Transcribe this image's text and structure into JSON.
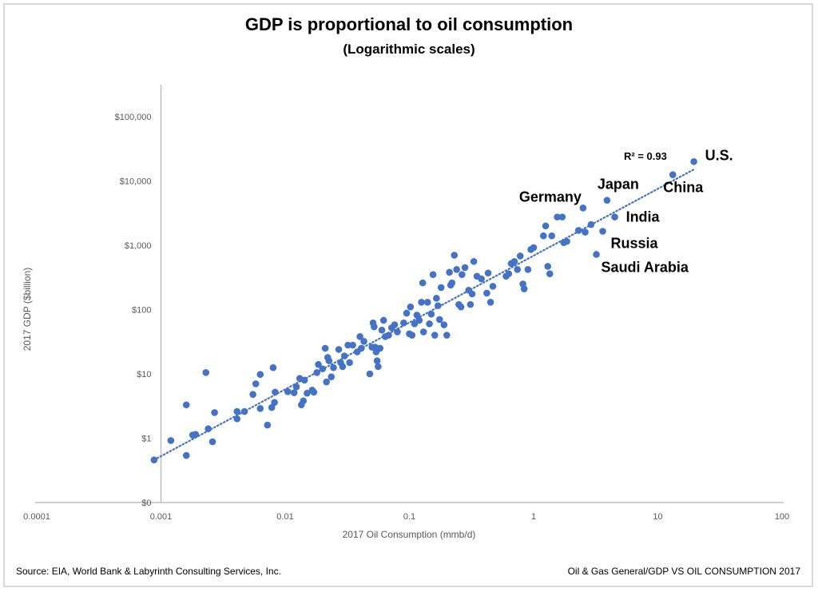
{
  "chart_data": {
    "type": "scatter",
    "title": "GDP is proportional to oil consumption",
    "subtitle": "(Logarithmic scales)",
    "xlabel": "2017 Oil Consumption (mmb/d)",
    "ylabel": "2017 GDP ($billion)",
    "xscale": "log",
    "yscale": "log",
    "xlim": [
      0.0001,
      100
    ],
    "ylim": [
      0.1,
      100000
    ],
    "x_ticks": [
      0.0001,
      0.001,
      0.01,
      0.1,
      1,
      10,
      100
    ],
    "x_tick_labels": [
      "0.0001",
      "0.001",
      "0.01",
      "0.1",
      "1",
      "10",
      "100"
    ],
    "y_ticks": [
      0.1,
      1,
      10,
      100,
      1000,
      10000,
      100000
    ],
    "y_tick_labels": [
      "$0",
      "$1",
      "$10",
      "$100",
      "$1,000",
      "$10,000",
      "$100,000"
    ],
    "grid": false,
    "marker_color": "#4472c4",
    "trendline": {
      "type": "power",
      "style": "dotted",
      "color": "#4472c4",
      "r_squared_label": "R² = 0.93",
      "start": [
        0.00088,
        0.46
      ],
      "end": [
        20,
        15500
      ]
    },
    "annotations": [
      {
        "label": "U.S.",
        "x": 19.5,
        "y": 20000
      },
      {
        "label": "China",
        "x": 13.2,
        "y": 12500
      },
      {
        "label": "Japan",
        "x": 3.9,
        "y": 5000
      },
      {
        "label": "Germany",
        "x": 2.5,
        "y": 3800
      },
      {
        "label": "India",
        "x": 4.5,
        "y": 2750
      },
      {
        "label": "Russia",
        "x": 3.6,
        "y": 1650
      },
      {
        "label": "Saudi Arabia",
        "x": 3.2,
        "y": 720
      }
    ],
    "points": [
      [
        0.00088,
        0.46
      ],
      [
        0.0012,
        0.92
      ],
      [
        0.0016,
        0.54
      ],
      [
        0.0016,
        3.3
      ],
      [
        0.0018,
        1.12
      ],
      [
        0.0019,
        1.15
      ],
      [
        0.0023,
        10.5
      ],
      [
        0.0024,
        1.4
      ],
      [
        0.0026,
        0.88
      ],
      [
        0.0027,
        2.5
      ],
      [
        0.0041,
        2.6
      ],
      [
        0.0041,
        2.0
      ],
      [
        0.0047,
        2.6
      ],
      [
        0.0055,
        4.8
      ],
      [
        0.0058,
        7.0
      ],
      [
        0.0063,
        9.8
      ],
      [
        0.0063,
        2.9
      ],
      [
        0.0072,
        1.6
      ],
      [
        0.0078,
        3.0
      ],
      [
        0.008,
        12.5
      ],
      [
        0.0082,
        3.6
      ],
      [
        0.0083,
        5.2
      ],
      [
        0.0105,
        5.3
      ],
      [
        0.0118,
        5.1
      ],
      [
        0.0123,
        6.3
      ],
      [
        0.0131,
        8.5
      ],
      [
        0.0135,
        3.3
      ],
      [
        0.014,
        3.8
      ],
      [
        0.0143,
        8.0
      ],
      [
        0.015,
        5.0
      ],
      [
        0.0165,
        5.6
      ],
      [
        0.017,
        5.2
      ],
      [
        0.018,
        10.5
      ],
      [
        0.0185,
        14.0
      ],
      [
        0.02,
        12.0
      ],
      [
        0.021,
        25.0
      ],
      [
        0.0215,
        7.5
      ],
      [
        0.022,
        18.0
      ],
      [
        0.0225,
        16.0
      ],
      [
        0.0235,
        9.0
      ],
      [
        0.0245,
        12.5
      ],
      [
        0.027,
        24.0
      ],
      [
        0.028,
        15.0
      ],
      [
        0.029,
        13.0
      ],
      [
        0.03,
        19.0
      ],
      [
        0.032,
        28.0
      ],
      [
        0.033,
        15.0
      ],
      [
        0.035,
        28.0
      ],
      [
        0.038,
        22.0
      ],
      [
        0.04,
        38.0
      ],
      [
        0.041,
        25.0
      ],
      [
        0.043,
        32.0
      ],
      [
        0.048,
        10.0
      ],
      [
        0.05,
        26.0
      ],
      [
        0.051,
        62.0
      ],
      [
        0.052,
        54.0
      ],
      [
        0.053,
        26.0
      ],
      [
        0.054,
        22.0
      ],
      [
        0.055,
        16.0
      ],
      [
        0.056,
        13.0
      ],
      [
        0.058,
        25.0
      ],
      [
        0.06,
        48.0
      ],
      [
        0.062,
        68.0
      ],
      [
        0.064,
        38.0
      ],
      [
        0.068,
        40.0
      ],
      [
        0.072,
        52.0
      ],
      [
        0.076,
        58.0
      ],
      [
        0.08,
        45.0
      ],
      [
        0.09,
        62.0
      ],
      [
        0.095,
        88.0
      ],
      [
        0.1,
        42.0
      ],
      [
        0.102,
        110.0
      ],
      [
        0.105,
        40.0
      ],
      [
        0.11,
        60.0
      ],
      [
        0.115,
        82.0
      ],
      [
        0.12,
        68.0
      ],
      [
        0.125,
        130.0
      ],
      [
        0.128,
        260.0
      ],
      [
        0.13,
        45.0
      ],
      [
        0.14,
        130.0
      ],
      [
        0.145,
        60.0
      ],
      [
        0.15,
        85.0
      ],
      [
        0.155,
        350.0
      ],
      [
        0.16,
        40.0
      ],
      [
        0.165,
        150.0
      ],
      [
        0.17,
        115.0
      ],
      [
        0.175,
        70.0
      ],
      [
        0.18,
        220.0
      ],
      [
        0.19,
        58.0
      ],
      [
        0.2,
        40.0
      ],
      [
        0.21,
        380.0
      ],
      [
        0.215,
        240.0
      ],
      [
        0.22,
        260.0
      ],
      [
        0.23,
        700.0
      ],
      [
        0.24,
        420.0
      ],
      [
        0.25,
        120.0
      ],
      [
        0.26,
        110.0
      ],
      [
        0.265,
        350.0
      ],
      [
        0.28,
        450.0
      ],
      [
        0.3,
        200.0
      ],
      [
        0.31,
        120.0
      ],
      [
        0.32,
        175.0
      ],
      [
        0.33,
        560.0
      ],
      [
        0.35,
        330.0
      ],
      [
        0.38,
        300.0
      ],
      [
        0.42,
        180.0
      ],
      [
        0.43,
        370.0
      ],
      [
        0.45,
        130.0
      ],
      [
        0.47,
        230.0
      ],
      [
        0.6,
        330.0
      ],
      [
        0.63,
        360.0
      ],
      [
        0.66,
        520.0
      ],
      [
        0.7,
        560.0
      ],
      [
        0.74,
        420.0
      ],
      [
        0.78,
        680.0
      ],
      [
        0.82,
        250.0
      ],
      [
        0.84,
        210.0
      ],
      [
        0.9,
        420.0
      ],
      [
        0.95,
        860.0
      ],
      [
        1.0,
        920.0
      ],
      [
        1.2,
        1400.0
      ],
      [
        1.25,
        2000.0
      ],
      [
        1.3,
        470.0
      ],
      [
        1.35,
        360.0
      ],
      [
        1.4,
        1400.0
      ],
      [
        1.55,
        2750.0
      ],
      [
        1.7,
        2750.0
      ],
      [
        1.75,
        1100.0
      ],
      [
        1.85,
        1150.0
      ],
      [
        2.3,
        1700.0
      ],
      [
        2.5,
        3800.0
      ],
      [
        2.6,
        1600.0
      ],
      [
        2.9,
        2100.0
      ],
      [
        3.2,
        720.0
      ],
      [
        3.6,
        1650.0
      ],
      [
        3.9,
        5000.0
      ],
      [
        4.5,
        2750.0
      ],
      [
        13.2,
        12500.0
      ],
      [
        19.5,
        20000.0
      ]
    ]
  },
  "footer": {
    "source": "Source: EIA, World Bank & Labyrinth Consulting Services, Inc.",
    "path": "Oil & Gas General/GDP VS OIL CONSUMPTION 2017"
  }
}
